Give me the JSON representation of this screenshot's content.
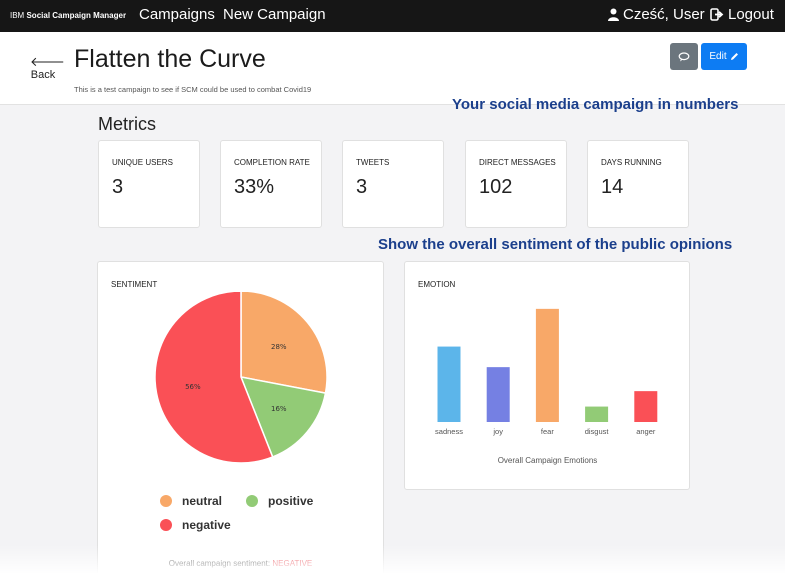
{
  "nav": {
    "brand_prefix": "IBM",
    "brand_name": "Social Campaign Manager",
    "campaigns": "Campaigns",
    "new_campaign": "New Campaign",
    "user": "Cześć, User",
    "logout": "Logout"
  },
  "header": {
    "back": "Back",
    "title": "Flatten the Curve",
    "subtitle": "This is a test campaign to see if SCM could be used to combat Covid19",
    "edit": "Edit"
  },
  "annotations": {
    "numbers": "Your social media campaign in numbers",
    "sentiment": "Show the overall sentiment of the public opinions"
  },
  "metrics": {
    "heading": "Metrics",
    "cards": [
      {
        "label": "UNIQUE USERS",
        "value": "3"
      },
      {
        "label": "COMPLETION RATE",
        "value": "33%"
      },
      {
        "label": "TWEETS",
        "value": "3"
      },
      {
        "label": "DIRECT MESSAGES",
        "value": "102"
      },
      {
        "label": "DAYS RUNNING",
        "value": "14"
      }
    ]
  },
  "sentiment": {
    "title": "SENTIMENT",
    "footer_label": "Overall campaign sentiment:",
    "footer_value": "NEGATIVE"
  },
  "emotion": {
    "title": "EMOTION",
    "caption": "Overall Campaign Emotions"
  },
  "colors": {
    "neutral": "#f8a868",
    "positive": "#92cb76",
    "negative": "#fa5056",
    "sadness": "#5cb5ea",
    "joy": "#7580e3",
    "fear": "#f8a868",
    "disgust": "#92cb76",
    "anger": "#fa5056"
  },
  "chart_data": [
    {
      "type": "pie",
      "title": "SENTIMENT",
      "categories": [
        "neutral",
        "positive",
        "negative"
      ],
      "values": [
        28,
        16,
        56
      ],
      "labels": [
        "28%",
        "16%",
        "56%"
      ],
      "legend": "bottom"
    },
    {
      "type": "bar",
      "title": "EMOTION",
      "xlabel": "Overall Campaign Emotions",
      "categories": [
        "sadness",
        "joy",
        "fear",
        "disgust",
        "anger"
      ],
      "values": [
        0.22,
        0.16,
        0.33,
        0.045,
        0.09
      ],
      "grid": false
    }
  ]
}
